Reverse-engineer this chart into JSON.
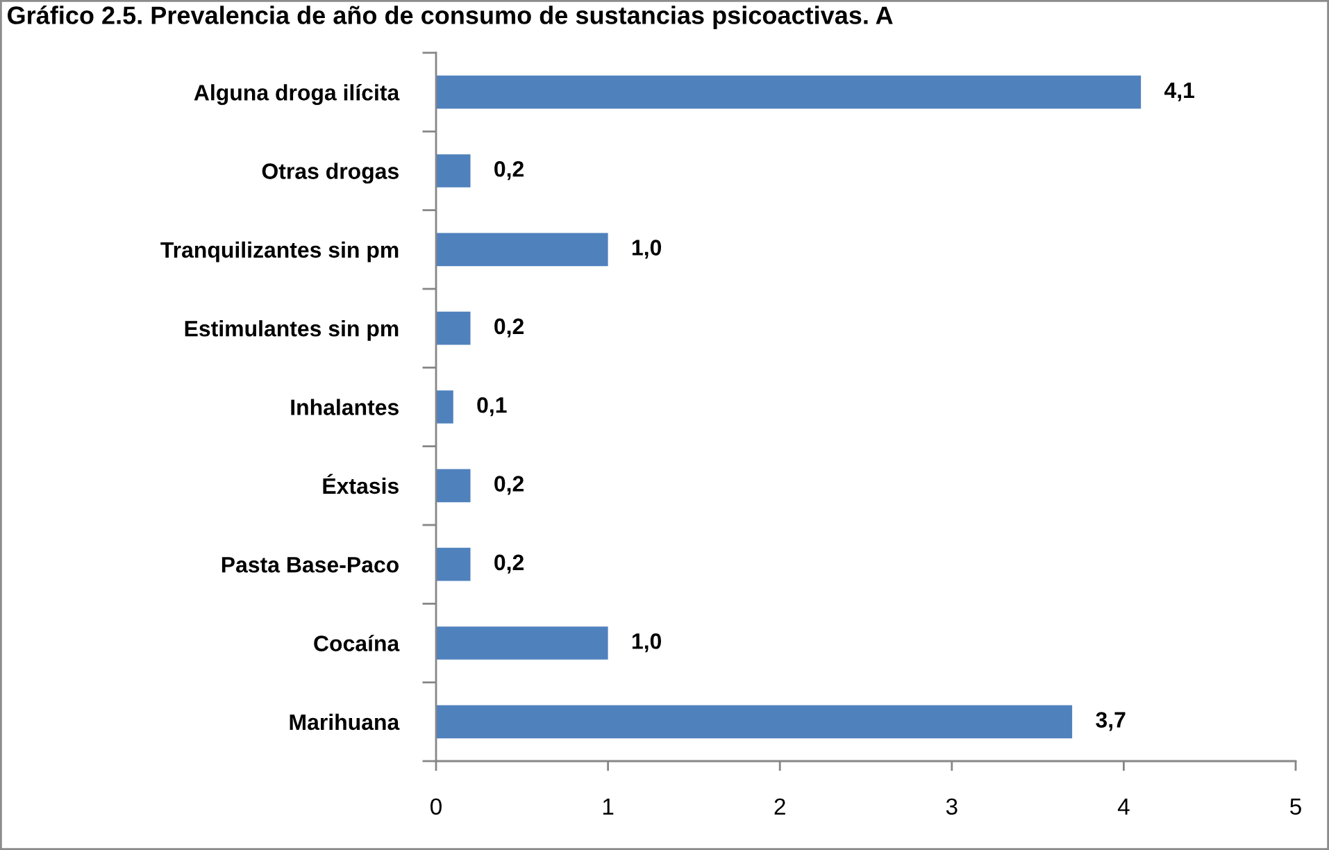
{
  "chart_data": {
    "type": "bar",
    "orientation": "horizontal",
    "title": "Gráfico 2.5. Prevalencia de año de consumo de sustancias psicoactivas. A",
    "categories": [
      "Alguna droga ilícita",
      "Otras drogas",
      "Tranquilizantes sin pm",
      "Estimulantes sin pm",
      "Inhalantes",
      "Éxtasis",
      "Pasta Base-Paco",
      "Cocaína",
      "Marihuana"
    ],
    "values": [
      4.1,
      0.2,
      1.0,
      0.2,
      0.1,
      0.2,
      0.2,
      1.0,
      3.7
    ],
    "value_labels": [
      "4,1",
      "0,2",
      "1,0",
      "0,2",
      "0,1",
      "0,2",
      "0,2",
      "1,0",
      "3,7"
    ],
    "color": "#4f81bd",
    "xlim": [
      0,
      5
    ],
    "xticks": [
      0,
      1,
      2,
      3,
      4,
      5
    ]
  }
}
